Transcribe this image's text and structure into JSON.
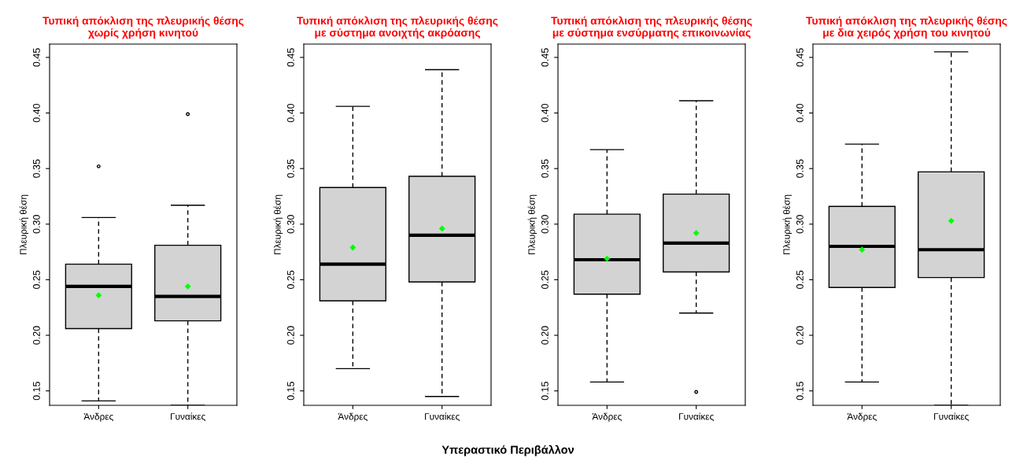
{
  "chart_data": [
    {
      "type": "box",
      "title": "Τυπική απόκλιση της πλευρικής θέσης\nχωρίς χρήση κινητού",
      "ylabel": "Πλευρική θέση",
      "categories": [
        "Άνδρες",
        "Γυναίκες"
      ],
      "ylim": [
        0.137,
        0.462
      ],
      "yticks": [
        {
          "value": 0.15,
          "label": "0.15"
        },
        {
          "value": 0.2,
          "label": "0.20"
        },
        {
          "value": 0.25,
          "label": "0.25"
        },
        {
          "value": 0.3,
          "label": "0.30"
        },
        {
          "value": 0.35,
          "label": "0.35"
        },
        {
          "value": 0.4,
          "label": "0.40"
        },
        {
          "value": 0.45,
          "label": "0.45"
        }
      ],
      "grid": false,
      "color": "#d3d3d3",
      "boxes": [
        {
          "low": 0.141,
          "q1": 0.206,
          "median": 0.244,
          "q3": 0.264,
          "high": 0.306,
          "mean": 0.236,
          "outliers": [
            0.352
          ]
        },
        {
          "low": 0.137,
          "q1": 0.213,
          "median": 0.235,
          "q3": 0.281,
          "high": 0.317,
          "mean": 0.244,
          "outliers": [
            0.399
          ]
        }
      ]
    },
    {
      "type": "box",
      "title": "Τυπική απόκλιση της πλευρικής θέσης\nμε σύστημα ανοιχτής ακρόασης",
      "ylabel": "Πλευρική θέση",
      "xlabel": "Υπεραστικό Περιβάλλον",
      "categories": [
        "Άνδρες",
        "Γυναίκες"
      ],
      "ylim": [
        0.137,
        0.462
      ],
      "yticks": [
        {
          "value": 0.15,
          "label": "0.15"
        },
        {
          "value": 0.2,
          "label": "0.20"
        },
        {
          "value": 0.25,
          "label": "0.25"
        },
        {
          "value": 0.3,
          "label": "0.30"
        },
        {
          "value": 0.35,
          "label": "0.35"
        },
        {
          "value": 0.4,
          "label": "0.40"
        },
        {
          "value": 0.45,
          "label": "0.45"
        }
      ],
      "grid": false,
      "color": "#d3d3d3",
      "boxes": [
        {
          "low": 0.17,
          "q1": 0.231,
          "median": 0.264,
          "q3": 0.333,
          "high": 0.406,
          "mean": 0.279
        },
        {
          "low": 0.145,
          "q1": 0.248,
          "median": 0.29,
          "q3": 0.343,
          "high": 0.439,
          "mean": 0.296
        }
      ]
    },
    {
      "type": "box",
      "title": "Τυπική απόκλιση της πλευρικής θέσης\nμε σύστημα ενσύρματης επικοινωνίας",
      "ylabel": "Πλευρική θέση",
      "categories": [
        "Άνδρες",
        "Γυναίκες"
      ],
      "ylim": [
        0.137,
        0.462
      ],
      "yticks": [
        {
          "value": 0.15,
          "label": "0.15"
        },
        {
          "value": 0.2,
          "label": "0.20"
        },
        {
          "value": 0.25,
          "label": "0.25"
        },
        {
          "value": 0.3,
          "label": "0.30"
        },
        {
          "value": 0.35,
          "label": "0.35"
        },
        {
          "value": 0.4,
          "label": "0.40"
        },
        {
          "value": 0.45,
          "label": "0.45"
        }
      ],
      "grid": false,
      "color": "#d3d3d3",
      "boxes": [
        {
          "low": 0.158,
          "q1": 0.237,
          "median": 0.268,
          "q3": 0.309,
          "high": 0.367,
          "mean": 0.269
        },
        {
          "low": 0.22,
          "q1": 0.257,
          "median": 0.283,
          "q3": 0.327,
          "high": 0.411,
          "mean": 0.292,
          "outliers": [
            0.149
          ]
        }
      ]
    },
    {
      "type": "box",
      "title": "Τυπική απόκλιση της πλευρικής θέσης\nμε δια χειρός χρήση του κινητού",
      "ylabel": "Πλευρική θέση",
      "categories": [
        "Άνδρες",
        "Γυναίκες"
      ],
      "ylim": [
        0.137,
        0.462
      ],
      "yticks": [
        {
          "value": 0.15,
          "label": "0.15"
        },
        {
          "value": 0.2,
          "label": "0.20"
        },
        {
          "value": 0.25,
          "label": "0.25"
        },
        {
          "value": 0.3,
          "label": "0.30"
        },
        {
          "value": 0.35,
          "label": "0.35"
        },
        {
          "value": 0.4,
          "label": "0.40"
        },
        {
          "value": 0.45,
          "label": "0.45"
        }
      ],
      "grid": false,
      "color": "#d3d3d3",
      "boxes": [
        {
          "low": 0.158,
          "q1": 0.243,
          "median": 0.28,
          "q3": 0.316,
          "high": 0.372,
          "mean": 0.277
        },
        {
          "low": 0.137,
          "q1": 0.252,
          "median": 0.277,
          "q3": 0.347,
          "high": 0.455,
          "mean": 0.303
        }
      ]
    }
  ]
}
